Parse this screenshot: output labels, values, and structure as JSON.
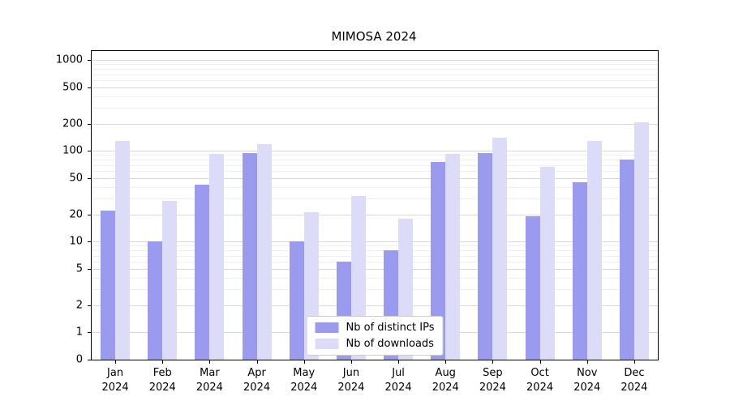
{
  "title": "MIMOSA 2024",
  "chart_data": {
    "type": "bar",
    "title": "MIMOSA 2024",
    "categories": [
      "Jan 2024",
      "Feb 2024",
      "Mar 2024",
      "Apr 2024",
      "May 2024",
      "Jun 2024",
      "Jul 2024",
      "Aug 2024",
      "Sep 2024",
      "Oct 2024",
      "Nov 2024",
      "Dec 2024"
    ],
    "series": [
      {
        "name": "Nb of distinct IPs",
        "color": "#9a9aee",
        "values": [
          22,
          10,
          42,
          95,
          10,
          6,
          8,
          76,
          95,
          19,
          45,
          80
        ]
      },
      {
        "name": "Nb of downloads",
        "color": "#dcdcf8",
        "values": [
          130,
          28,
          92,
          118,
          21,
          32,
          18,
          92,
          140,
          67,
          130,
          205
        ]
      }
    ],
    "xlabel": "",
    "ylabel": "",
    "yscale": "symlog",
    "yticks": [
      0,
      1,
      2,
      5,
      10,
      20,
      50,
      100,
      200,
      500,
      1000
    ],
    "ylim": [
      0,
      1000
    ],
    "grid": true,
    "legend_position": "lower center"
  },
  "colors": {
    "grid_major": "#d8d8d8",
    "grid_minor": "#efefef",
    "axis": "#000000",
    "background": "#ffffff"
  }
}
